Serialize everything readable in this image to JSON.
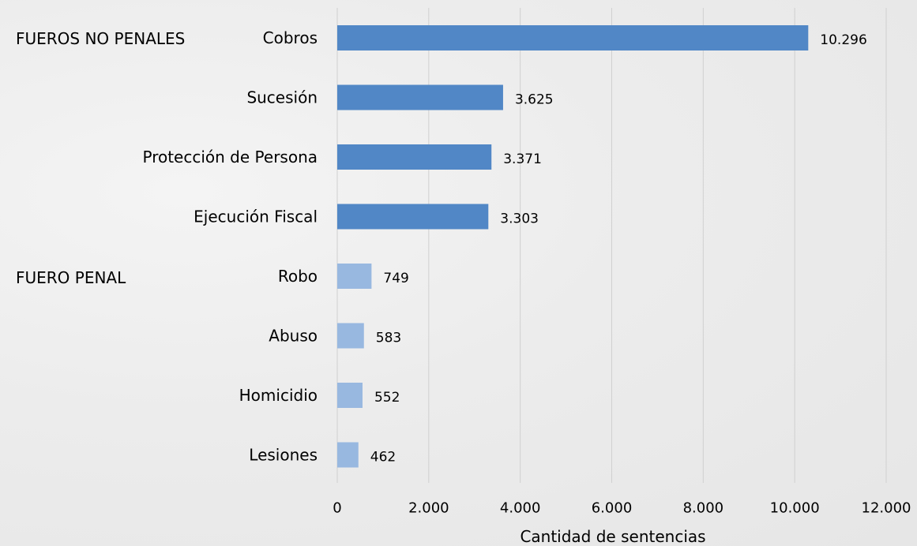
{
  "groups": {
    "non_penal": "FUEROS NO PENALES",
    "penal": "FUERO PENAL"
  },
  "chart_data": {
    "type": "bar",
    "orientation": "horizontal",
    "categories": [
      "Cobros",
      "Sucesión",
      "Protección de Persona",
      "Ejecución Fiscal",
      "Robo",
      "Abuso",
      "Homicidio",
      "Lesiones"
    ],
    "values": [
      10296,
      3625,
      3371,
      3303,
      749,
      583,
      552,
      462
    ],
    "value_labels": [
      "10.296",
      "3.625",
      "3.371",
      "3.303",
      "749",
      "583",
      "552",
      "462"
    ],
    "group_of_category": [
      "non_penal",
      "non_penal",
      "non_penal",
      "non_penal",
      "penal",
      "penal",
      "penal",
      "penal"
    ],
    "colors": {
      "non_penal": "#5187c6",
      "penal": "#98b8e0",
      "grid": "#d0d0d0"
    },
    "xlabel": "Cantidad de sentencias",
    "xlim": [
      0,
      12000
    ],
    "xticks": [
      0,
      2000,
      4000,
      6000,
      8000,
      10000,
      12000
    ],
    "xtick_labels": [
      "0",
      "2.000",
      "4.000",
      "6.000",
      "8.000",
      "10.000",
      "12.000"
    ],
    "grid": true,
    "legend": "none"
  }
}
